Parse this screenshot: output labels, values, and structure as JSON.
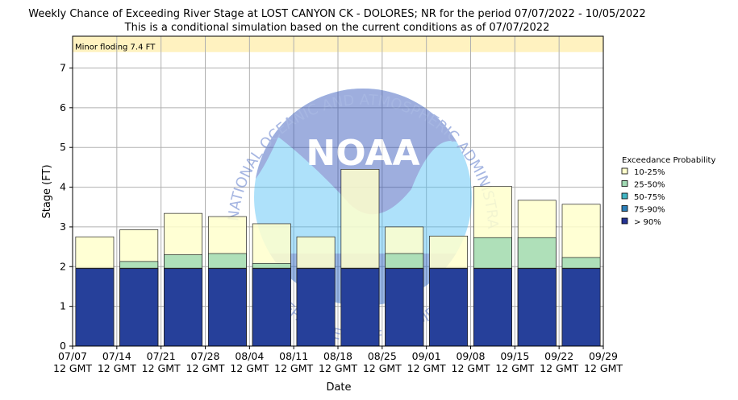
{
  "chart_data": {
    "type": "bar",
    "title": "Weekly Chance of Exceeding River Stage at LOST CANYON CK - DOLORES; NR for the period 07/07/2022 - 10/05/2022",
    "subtitle": "This is a conditional simulation based on the current conditions as of 07/07/2022",
    "xlabel": "Date",
    "ylabel": "Stage (FT)",
    "ylim": [
      0,
      7.8
    ],
    "yticks": [
      0,
      1,
      2,
      3,
      4,
      5,
      6,
      7
    ],
    "grid": true,
    "x_ticks": [
      {
        "date": "07/07",
        "time": "12 GMT"
      },
      {
        "date": "07/14",
        "time": "12 GMT"
      },
      {
        "date": "07/21",
        "time": "12 GMT"
      },
      {
        "date": "07/28",
        "time": "12 GMT"
      },
      {
        "date": "08/04",
        "time": "12 GMT"
      },
      {
        "date": "08/11",
        "time": "12 GMT"
      },
      {
        "date": "08/18",
        "time": "12 GMT"
      },
      {
        "date": "08/25",
        "time": "12 GMT"
      },
      {
        "date": "09/01",
        "time": "12 GMT"
      },
      {
        "date": "09/08",
        "time": "12 GMT"
      },
      {
        "date": "09/15",
        "time": "12 GMT"
      },
      {
        "date": "09/22",
        "time": "12 GMT"
      },
      {
        "date": "09/29",
        "time": "12 GMT"
      }
    ],
    "flood_band": {
      "label": "Minor floding 7.4 FT",
      "from": 7.4,
      "to": 7.8,
      "color": "#fff2c0"
    },
    "legend_title": "Exceedance Probability",
    "legend_placement": "right",
    "series": [
      {
        "name": "10-25%",
        "color": "#ffffcc",
        "values": [
          2.75,
          2.93,
          3.34,
          3.26,
          3.08,
          2.75,
          4.45,
          3.0,
          2.77,
          4.02,
          3.67,
          3.57
        ]
      },
      {
        "name": "25-50%",
        "color": "#a1dab4",
        "values": [
          1.96,
          2.13,
          2.3,
          2.33,
          2.08,
          1.96,
          1.96,
          2.33,
          1.96,
          2.73,
          2.73,
          2.23
        ]
      },
      {
        "name": "50-75%",
        "color": "#41b6c4",
        "values": [
          1.96,
          1.96,
          1.96,
          1.96,
          1.96,
          1.96,
          1.96,
          1.96,
          1.96,
          1.96,
          1.96,
          1.96
        ]
      },
      {
        "name": "75-90%",
        "color": "#2c7fb8",
        "values": [
          1.96,
          1.96,
          1.96,
          1.96,
          1.96,
          1.96,
          1.96,
          1.96,
          1.96,
          1.96,
          1.96,
          1.96
        ]
      },
      {
        "name": "> 90%",
        "color": "#253494",
        "values": [
          1.95,
          1.95,
          1.95,
          1.95,
          1.95,
          1.95,
          1.95,
          1.95,
          1.95,
          1.95,
          1.95,
          1.95
        ]
      }
    ]
  },
  "watermark": {
    "logo_text": "NOAA",
    "ring_text": "NATIONAL OCEANIC AND ATMOSPHERIC ADMINISTRATION",
    "ring_text_bottom": "U.S. DEPARTMENT OF COMMERCE",
    "icon": "noaa-logo-icon"
  }
}
